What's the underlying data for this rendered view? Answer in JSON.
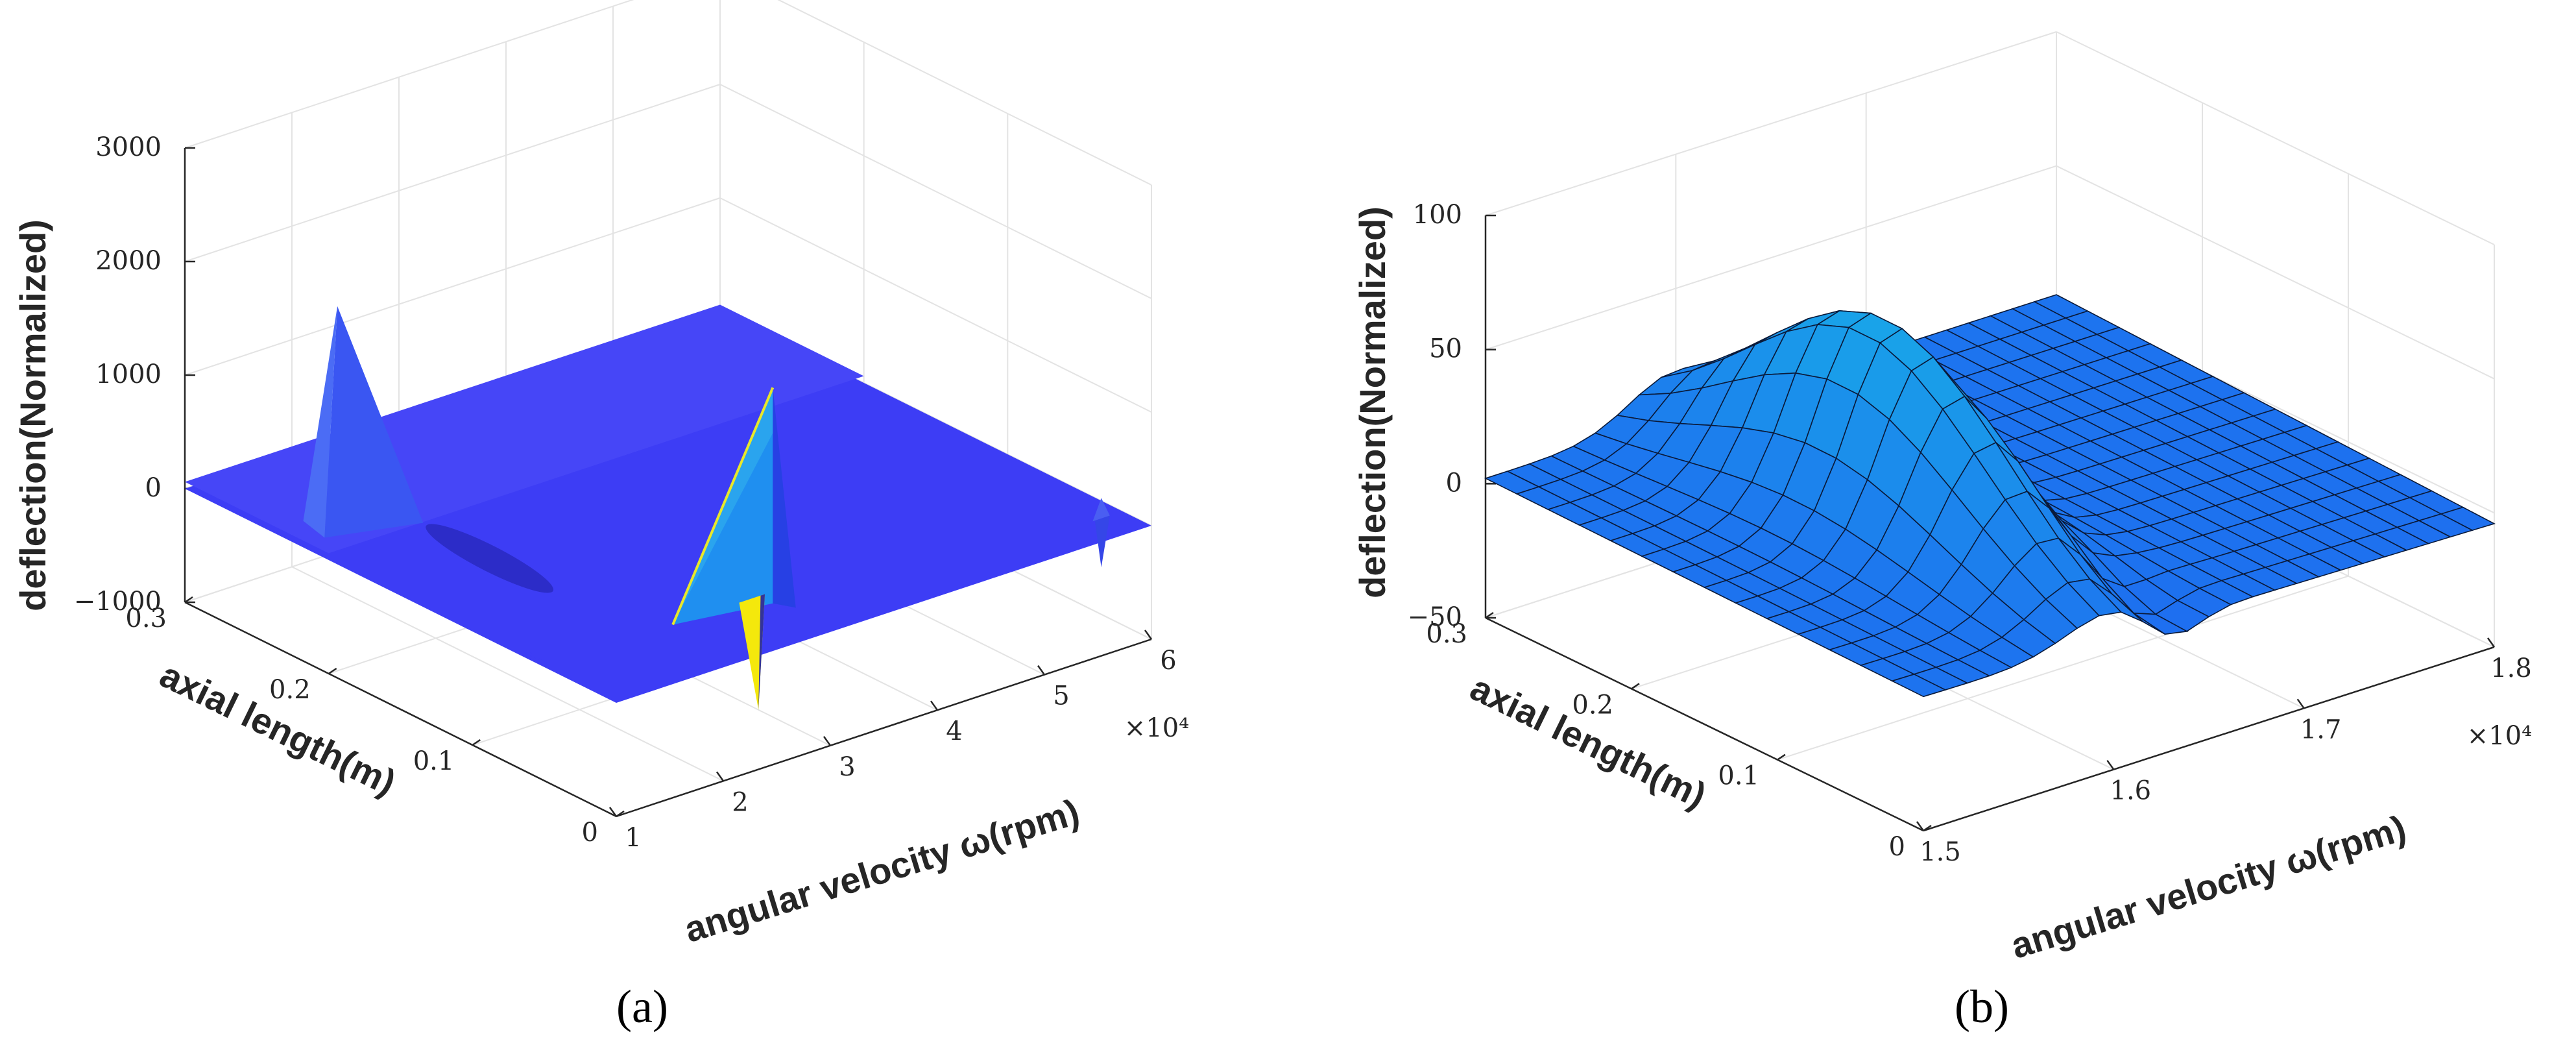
{
  "chart_data": [
    {
      "type": "surface",
      "panel_label": "a",
      "zlabel": "deflection(Normalized)",
      "ylabel": "axial length(m)",
      "xlabel": "angular velocity ω(rpm)",
      "x_exponent_label": "×10⁴",
      "xlim": [
        1,
        6
      ],
      "ylim": [
        0,
        0.3
      ],
      "zlim": [
        -1000,
        3000
      ],
      "x_ticks": [
        "1",
        "2",
        "3",
        "4",
        "5",
        "6"
      ],
      "y_ticks": [
        "0",
        "0.1",
        "0.2",
        "0.3"
      ],
      "z_ticks": [
        "−1000",
        "0",
        "1000",
        "2000",
        "3000"
      ],
      "grid": true,
      "colormap": "parula",
      "surface_color": "#3d3df5",
      "features": [
        {
          "x": 1.35,
          "y": 0.22,
          "z": 2000,
          "kind": "spike"
        },
        {
          "x": 3.0,
          "y": 0.04,
          "z": 1900,
          "kind": "spike"
        },
        {
          "x": 3.0,
          "y": 0.05,
          "z": -1000,
          "kind": "dip"
        },
        {
          "x": 2.1,
          "y": 0.17,
          "z": -140,
          "kind": "dip"
        },
        {
          "x": 5.8,
          "y": 0.02,
          "z": 180,
          "kind": "spike"
        },
        {
          "x": 5.8,
          "y": 0.02,
          "z": -430,
          "kind": "dip"
        }
      ]
    },
    {
      "type": "surface",
      "panel_label": "b",
      "zlabel": "deflection(Normalized)",
      "ylabel": "axial length(m)",
      "xlabel": "angular velocity ω(rpm)",
      "x_exponent_label": "×10⁴",
      "xlim": [
        1.5,
        1.8
      ],
      "ylim": [
        0,
        0.3
      ],
      "zlim": [
        -50,
        100
      ],
      "x_ticks": [
        "1.5",
        "1.6",
        "1.7",
        "1.8"
      ],
      "y_ticks": [
        "0",
        "0.1",
        "0.2",
        "0.3"
      ],
      "z_ticks": [
        "−50",
        "0",
        "50",
        "100"
      ],
      "grid": true,
      "surface_color": "#1e90ff",
      "edge_color": "#000000",
      "peak": {
        "x": 1.6,
        "y": 0.16,
        "z": 75
      }
    }
  ],
  "captions": [
    "(a)",
    "(b)"
  ]
}
